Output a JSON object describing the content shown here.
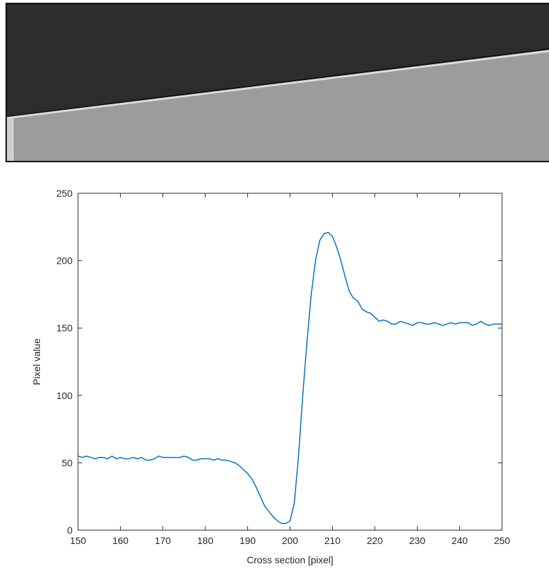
{
  "chart_data": {
    "type": "line",
    "xlabel": "Cross section [pixel]",
    "ylabel": "Pixel value",
    "x": [
      150,
      151,
      152,
      153,
      154,
      155,
      156,
      157,
      158,
      159,
      160,
      161,
      162,
      163,
      164,
      165,
      166,
      167,
      168,
      169,
      170,
      171,
      172,
      173,
      174,
      175,
      176,
      177,
      178,
      179,
      180,
      181,
      182,
      183,
      184,
      185,
      186,
      187,
      188,
      189,
      190,
      191,
      192,
      193,
      194,
      195,
      196,
      197,
      198,
      199,
      200,
      201,
      202,
      203,
      204,
      205,
      206,
      207,
      208,
      209,
      210,
      211,
      212,
      213,
      214,
      215,
      216,
      217,
      218,
      219,
      220,
      221,
      222,
      223,
      224,
      225,
      226,
      227,
      228,
      229,
      230,
      231,
      232,
      233,
      234,
      235,
      236,
      237,
      238,
      239,
      240,
      241,
      242,
      243,
      244,
      245,
      246,
      247,
      248,
      249,
      250
    ],
    "values": [
      55,
      54,
      55,
      54,
      53,
      54,
      54,
      53,
      55,
      53,
      54,
      53,
      53,
      54,
      53,
      54,
      52,
      52,
      53,
      55,
      54,
      54,
      54,
      54,
      54,
      55,
      54,
      52,
      52,
      53,
      53,
      53,
      52,
      53,
      52,
      52,
      51,
      50,
      48,
      45,
      42,
      38,
      32,
      25,
      18,
      14,
      10,
      7,
      5,
      5,
      7,
      20,
      55,
      100,
      140,
      175,
      200,
      215,
      220,
      221,
      218,
      210,
      200,
      188,
      177,
      172,
      170,
      164,
      162,
      161,
      158,
      155,
      156,
      155,
      153,
      153,
      155,
      154,
      153,
      152,
      154,
      154,
      153,
      153,
      154,
      153,
      152,
      153,
      154,
      153,
      154,
      154,
      154,
      152,
      153,
      155,
      153,
      152,
      153,
      153,
      153
    ],
    "color": "#0072bd",
    "xlim": [
      150,
      250
    ],
    "xticks": [
      150,
      160,
      170,
      180,
      190,
      200,
      210,
      220,
      230,
      240,
      250
    ],
    "ylim": [
      0,
      250
    ],
    "yticks": [
      0,
      50,
      100,
      150,
      200,
      250
    ],
    "grid": false
  }
}
